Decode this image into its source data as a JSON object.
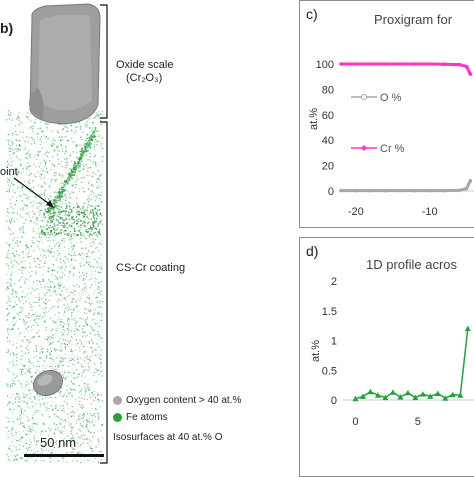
{
  "panel_b": {
    "label": "b)",
    "oxide_label": "Oxide scale",
    "oxide_formula": "(Cr₂O₃)",
    "point_label": "oint",
    "coating_label": "CS-Cr coating",
    "legend": [
      {
        "text": "Oxygen content > 40 at.%",
        "color": "#a9a9a9"
      },
      {
        "text": "Fe atoms",
        "color": "#22a33a"
      }
    ],
    "isosurface_note": "Isosurfaces at 40 at.% O",
    "scale_bar_label": "50 nm"
  },
  "panel_c": {
    "letter": "c)",
    "title": "Proxigram for",
    "y_label": "at.%",
    "y_ticks": [
      "100",
      "80",
      "60",
      "40",
      "20",
      "0"
    ],
    "x_ticks": [
      "-20",
      "-10"
    ]
  },
  "panel_d": {
    "letter": "d)",
    "title": "1D profile acros",
    "y_label": "at.%",
    "y_ticks": [
      "2",
      "1.5",
      "1",
      "0.5",
      "0"
    ],
    "x_ticks": [
      "0",
      "5"
    ]
  },
  "chart_data": [
    {
      "type": "line",
      "title": "Proxigram for",
      "ylabel": "at.%",
      "xlim": [
        -22,
        -4
      ],
      "ylim": [
        0,
        100
      ],
      "series": [
        {
          "name": "O %",
          "color": "#a6a6a6",
          "x": [
            -22,
            -20,
            -18,
            -16,
            -14,
            -12,
            -10,
            -8,
            -6,
            -5,
            -4.5
          ],
          "y": [
            0.3,
            0.3,
            0.3,
            0.3,
            0.3,
            0.3,
            0.3,
            0.3,
            0.5,
            2,
            8
          ]
        },
        {
          "name": "Cr %",
          "color": "#ff33cc",
          "x": [
            -22,
            -20,
            -18,
            -16,
            -14,
            -12,
            -10,
            -8,
            -6,
            -5,
            -4.5
          ],
          "y": [
            100,
            100,
            100,
            100,
            100,
            100,
            100,
            99.8,
            99.5,
            98,
            92
          ]
        }
      ]
    },
    {
      "type": "line",
      "title": "1D profile acros",
      "ylabel": "at.%",
      "xlim": [
        -1,
        9.5
      ],
      "ylim": [
        0,
        2
      ],
      "series": [
        {
          "color": "#22a33a",
          "x": [
            0,
            0.6,
            1.2,
            1.8,
            2.4,
            3.0,
            3.6,
            4.2,
            4.8,
            5.4,
            6.0,
            6.6,
            7.2,
            7.8,
            8.4,
            9.0
          ],
          "y": [
            0.02,
            0.06,
            0.14,
            0.08,
            0.04,
            0.13,
            0.05,
            0.12,
            0.04,
            0.1,
            0.06,
            0.11,
            0.03,
            0.09,
            0.08,
            1.2
          ]
        }
      ]
    }
  ]
}
